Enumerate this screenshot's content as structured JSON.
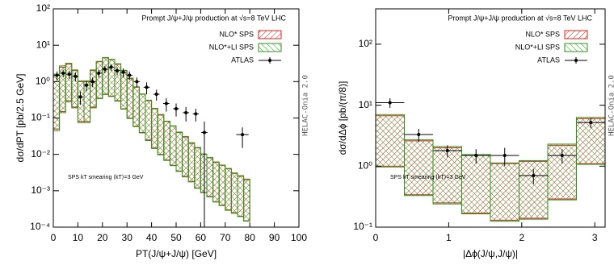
{
  "chart_data": [
    {
      "type": "band_errorbar",
      "log_y": true,
      "title": "Prompt J/ψ+J/ψ production at √s=8 TeV LHC",
      "x_label": "PT(J/ψ+J/ψ) [GeV]",
      "y_label": "dσ/dPT [pb/2.5 GeV]",
      "annotations": [
        "SPS kT smearing ⟨kT⟩=3 GeV",
        "HELAC-Onia 2.0"
      ],
      "xlim": [
        0,
        100
      ],
      "xticks": [
        0,
        10,
        20,
        30,
        40,
        50,
        60,
        70,
        80,
        90,
        100
      ],
      "ylim": [
        0.0001,
        100
      ],
      "yticks": [
        {
          "value": 0.0001,
          "label": "10⁻⁴"
        },
        {
          "value": 0.001,
          "label": "10⁻³"
        },
        {
          "value": 0.01,
          "label": "10⁻²"
        },
        {
          "value": 0.1,
          "label": "10⁻¹"
        },
        {
          "value": 1,
          "label": "10⁰"
        },
        {
          "value": 10,
          "label": "10¹"
        },
        {
          "value": 100,
          "label": "10²"
        }
      ],
      "bins": [
        0,
        2.5,
        5,
        7.5,
        10,
        12.5,
        15,
        17.5,
        20,
        22.5,
        25,
        27.5,
        30,
        32.5,
        35,
        37.5,
        40,
        42.5,
        45,
        47.5,
        50,
        52.5,
        55,
        57.5,
        60,
        62.5,
        65,
        67.5,
        70,
        72.5,
        75,
        77.5,
        80
      ],
      "bands": [
        {
          "name": "NLO* SPS",
          "color": "#e0201a",
          "upper": [
            1.5,
            2.5,
            3,
            2,
            1,
            1,
            2,
            3.5,
            4.5,
            4,
            3,
            2,
            1.2,
            0.7,
            0.45,
            0.3,
            0.18,
            0.12,
            0.08,
            0.06,
            0.04,
            0.03,
            0.02,
            0.015,
            0.01,
            0.008,
            0.006,
            0.005,
            0.004,
            0.003,
            0.0025,
            0.002
          ],
          "lower": [
            0.05,
            0.15,
            0.3,
            0.2,
            0.08,
            0.08,
            0.2,
            0.35,
            0.45,
            0.4,
            0.3,
            0.18,
            0.1,
            0.06,
            0.04,
            0.025,
            0.015,
            0.01,
            0.007,
            0.005,
            0.0035,
            0.0025,
            0.0018,
            0.0012,
            0.0009,
            0.0007,
            0.0005,
            0.0004,
            0.0003,
            0.00025,
            0.0002,
            0.00015
          ]
        },
        {
          "name": "NLO*+LI SPS",
          "color": "#2a9a1a",
          "upper": [
            1.6,
            2.7,
            3.2,
            2.1,
            1.05,
            1.05,
            2.1,
            3.6,
            4.6,
            4.1,
            3.1,
            2.05,
            1.25,
            0.72,
            0.46,
            0.31,
            0.185,
            0.125,
            0.082,
            0.061,
            0.041,
            0.031,
            0.021,
            0.0155,
            0.0103,
            0.0082,
            0.0062,
            0.0051,
            0.0041,
            0.0031,
            0.0026,
            0.0021
          ],
          "lower": [
            0.045,
            0.14,
            0.28,
            0.19,
            0.075,
            0.075,
            0.19,
            0.34,
            0.44,
            0.39,
            0.29,
            0.175,
            0.097,
            0.058,
            0.039,
            0.024,
            0.0145,
            0.0097,
            0.0068,
            0.0049,
            0.0034,
            0.0024,
            0.00175,
            0.00117,
            0.00088,
            0.00068,
            0.00049,
            0.00039,
            0.00029,
            0.00024,
            0.000195,
            0.000146
          ]
        }
      ],
      "points": {
        "name": "ATLAS",
        "color": "#000000",
        "x": [
          1.5,
          4,
          6.5,
          9,
          11,
          13.5,
          16,
          18.5,
          21,
          23.5,
          26,
          28.5,
          31,
          34,
          38,
          42,
          46,
          50,
          54,
          58,
          61.5,
          77
        ],
        "values": [
          1.5,
          1.7,
          1.6,
          1.4,
          0.38,
          0.8,
          1.0,
          1.7,
          2.2,
          2.5,
          2.0,
          1.8,
          1.5,
          1.0,
          0.7,
          0.45,
          0.25,
          0.18,
          0.14,
          0.13,
          0.04,
          0.035
        ],
        "errors": [
          0.4,
          0.4,
          0.4,
          0.4,
          0.15,
          0.25,
          0.3,
          0.4,
          0.5,
          0.5,
          0.5,
          0.5,
          0.4,
          0.3,
          0.25,
          0.15,
          0.1,
          0.07,
          0.06,
          0.05,
          0.04,
          0.02
        ],
        "xerrors": [
          1.25,
          1.25,
          1.25,
          1.25,
          1.25,
          1.25,
          1.25,
          1.25,
          1.25,
          1.25,
          1.25,
          1.25,
          1.25,
          1.25,
          1.25,
          1.25,
          1.25,
          1.25,
          1.25,
          1.25,
          1.25,
          2.5
        ]
      }
    },
    {
      "type": "band_errorbar",
      "log_y": true,
      "title": "Prompt J/ψ+J/ψ production at √s=8 TeV LHC",
      "x_label": "|Δϕ(J/ψ,J/ψ)|",
      "y_label": "dσ/dΔϕ [pb/(π/8)]",
      "annotations": [
        "SPS kT smearing ⟨kT⟩=3 GeV",
        "HELAC-Onia 2.0"
      ],
      "xlim": [
        0,
        3.1416
      ],
      "xticks": [
        0,
        1,
        2,
        3
      ],
      "ylim": [
        0.1,
        380
      ],
      "yticks": [
        {
          "value": 0.1,
          "label": "10⁻¹"
        },
        {
          "value": 1,
          "label": "10⁰"
        },
        {
          "value": 10,
          "label": "10¹"
        },
        {
          "value": 100,
          "label": "10²"
        }
      ],
      "bins": [
        0,
        0.3927,
        0.7854,
        1.1781,
        1.5708,
        1.9635,
        2.3562,
        2.7489,
        3.1416
      ],
      "bands": [
        {
          "name": "NLO* SPS",
          "color": "#e0201a",
          "upper": [
            6.7,
            2.6,
            2.0,
            1.5,
            1.1,
            1.2,
            2.2,
            6
          ],
          "lower": [
            1.0,
            0.34,
            0.25,
            0.17,
            0.13,
            0.14,
            0.29,
            1.1
          ]
        },
        {
          "name": "NLO*+LI SPS",
          "color": "#2a9a1a",
          "upper": [
            7,
            2.7,
            2.1,
            1.55,
            1.13,
            1.23,
            2.3,
            6.3
          ],
          "lower": [
            0.97,
            0.33,
            0.24,
            0.165,
            0.125,
            0.135,
            0.28,
            1.07
          ]
        }
      ],
      "points": {
        "name": "ATLAS",
        "color": "#000000",
        "x": [
          0.196,
          0.589,
          0.982,
          1.374,
          1.767,
          2.16,
          2.553,
          2.945
        ],
        "values": [
          11,
          3.3,
          1.8,
          1.5,
          1.5,
          0.7,
          1.5,
          5.2
        ],
        "errors": [
          2,
          0.8,
          0.4,
          0.4,
          0.5,
          0.2,
          0.4,
          1.0
        ],
        "xerrors": [
          0.196,
          0.196,
          0.196,
          0.196,
          0.196,
          0.196,
          0.196,
          0.196
        ]
      }
    }
  ]
}
